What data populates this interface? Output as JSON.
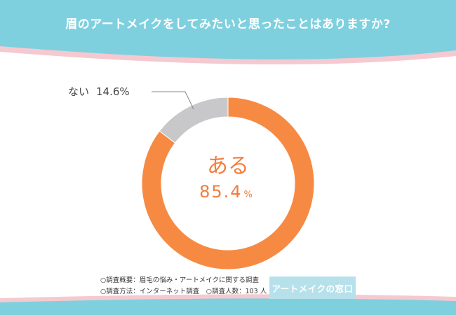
{
  "title": "眉のアートメイクをしてみたいと思ったことはありますか?",
  "colors": {
    "background_top": "#7fd0de",
    "panel": "#ffffff",
    "accent_stripe": "#f5c9d0",
    "slice_yes": "#f78a43",
    "slice_no": "#c8c8ca",
    "center_text": "#f47c39"
  },
  "chart_data": {
    "type": "pie",
    "style": "donut",
    "title": "眉のアートメイクをしてみたいと思ったことはありますか?",
    "slices": [
      {
        "label": "ある",
        "value": 85.4,
        "display_value": "85.4",
        "unit": "%"
      },
      {
        "label": "ない",
        "value": 14.6,
        "display_value": "14.6%"
      }
    ]
  },
  "footnotes": {
    "line1": "○調査概要：眉毛の悩み・アートメイクに関する調査",
    "line2": "○調査方法：インターネット調査　○調査人数：103 人"
  },
  "brand": "アートメイクの窓口"
}
